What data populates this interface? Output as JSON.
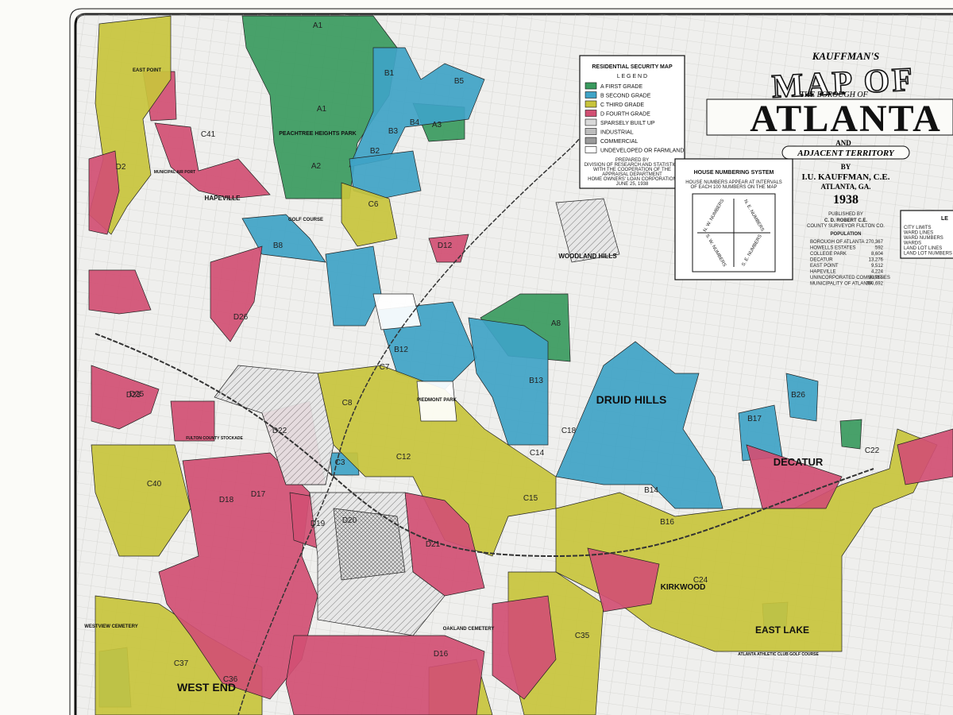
{
  "title_block": {
    "publisher": "KAUFFMAN'S",
    "title_top": "MAP OF",
    "subtitle": "THE BOROUGH OF",
    "title": "ATLANTA",
    "and": "AND",
    "adjacent": "ADJACENT TERRITORY",
    "by": "BY",
    "author": "I.U. KAUFFMAN, C.E.",
    "place": "ATLANTA, GA.",
    "year": "1938"
  },
  "legend": {
    "title": "RESIDENTIAL SECURITY MAP",
    "subtitle": "L E G E N D",
    "items": [
      {
        "label": "A FIRST GRADE",
        "color": "#3a9a5e"
      },
      {
        "label": "B SECOND GRADE",
        "color": "#3fa3c6"
      },
      {
        "label": "C THIRD GRADE",
        "color": "#c8c43c"
      },
      {
        "label": "D FOURTH GRADE",
        "color": "#d14f73"
      },
      {
        "label": "SPARSELY BUILT UP",
        "color": "#d9d9d9"
      },
      {
        "label": "INDUSTRIAL",
        "color": "#bdbdbd"
      },
      {
        "label": "COMMERCIAL",
        "color": "#9a9a9a"
      },
      {
        "label": "UNDEVELOPED OR FARMLAND",
        "color": "#ffffff"
      }
    ],
    "prepared_by": "PREPARED BY",
    "division": "DIVISION OF RESEARCH AND STATISTICS",
    "cooperation": "WITH THE COOPERATION OF THE",
    "department": "APPRAISAL DEPARTMENT",
    "corporation": "HOME OWNERS' LOAN CORPORATION",
    "date": "JUNE 25, 1938"
  },
  "house_numbering": {
    "title": "HOUSE NUMBERING SYSTEM",
    "note_1": "HOUSE NUMBERS APPEAR AT INTERVALS",
    "note_2": "OF EACH 100 NUMBERS ON THE MAP",
    "directions": [
      "N. W. NUMBERS",
      "N. E. NUMBERS",
      "S. W. NUMBERS",
      "S. E. NUMBERS"
    ]
  },
  "population": {
    "published_by": "PUBLISHED BY",
    "surveyor": "C. D. ROBERT C.E.",
    "county": "COUNTY SURVEYOR FULTON CO.",
    "title": "POPULATION",
    "rows": [
      [
        "BOROUGH OF ATLANTA",
        "270,367"
      ],
      [
        "HOWELLS ESTATES",
        "592"
      ],
      [
        "COLLEGE PARK",
        "8,604"
      ],
      [
        "DECATUR",
        "13,276"
      ],
      [
        "EAST POINT",
        "9,512"
      ],
      [
        "HAPEVILLE",
        "4,224"
      ],
      [
        "UNINCORPORATED COMMUNITIES",
        "30,755"
      ],
      [
        "MUNICIPALITY OF ATLANTA",
        "360,692"
      ]
    ]
  },
  "key": {
    "title": "LE",
    "items": [
      "CITY LIMITS",
      "WARD LINES",
      "WARD NUMBERS",
      "WARDS",
      "LAND LOT LINES",
      "LAND LOT NUMBERS"
    ]
  },
  "places": [
    "DRUID HILLS",
    "DECATUR",
    "WEST END",
    "EAST LAKE",
    "HAPEVILLE",
    "KIRKWOOD",
    "PIEDMONT PARK",
    "OAKLAND CEMETERY",
    "WESTVIEW CEMETERY",
    "ATLANTA ATHLETIC CLUB GOLF COURSE",
    "WOODLAND HILLS",
    "PEACHTREE HEIGHTS PARK",
    "EAST POINT",
    "MUNICIPAL AIR PORT",
    "FULTON COUNTY STOCKADE",
    "GOLF COURSE"
  ],
  "zone_labels": [
    "A1",
    "A1",
    "A2",
    "A3",
    "A8",
    "B1",
    "B5",
    "B2",
    "B4",
    "B3",
    "B8",
    "B12",
    "B13",
    "B14",
    "B16",
    "B17",
    "B26",
    "C3",
    "C6",
    "C7",
    "C8",
    "C12",
    "C14",
    "C15",
    "C18",
    "C22",
    "C24",
    "C35",
    "C36",
    "C37",
    "C40",
    "C41",
    "D2",
    "D12",
    "D16",
    "D17",
    "D18",
    "D19",
    "D20",
    "D21",
    "D22",
    "D23",
    "D25",
    "D26"
  ]
}
